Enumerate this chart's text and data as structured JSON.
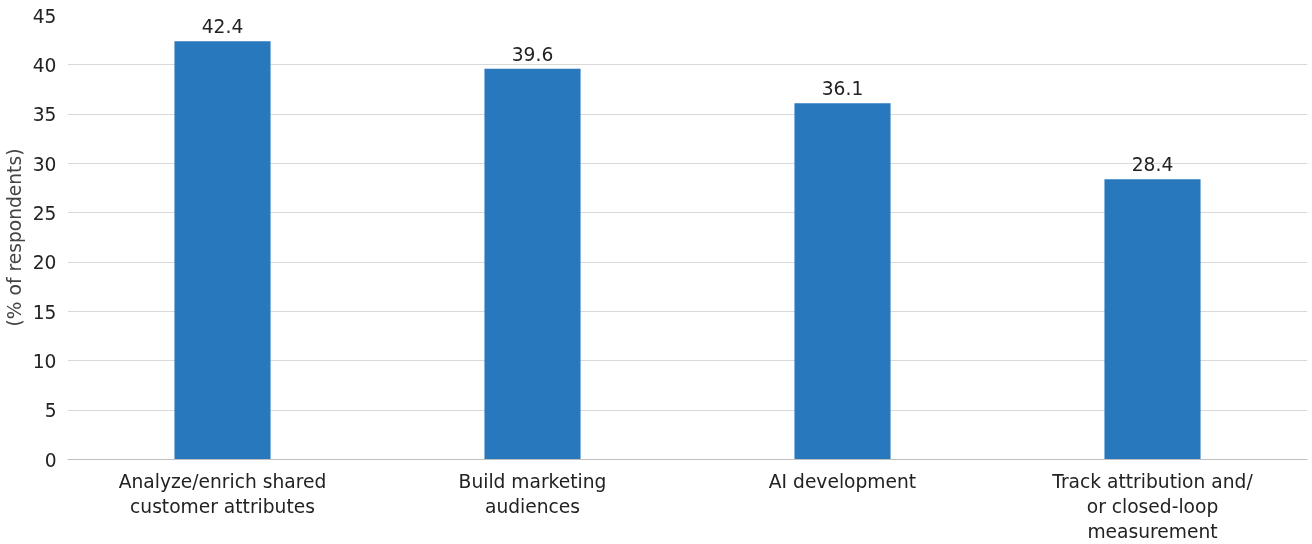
{
  "chart_data": {
    "type": "bar",
    "ylabel": "(% of respondents)",
    "categories": [
      "Analyze/enrich shared customer attributes",
      "Build marketing audiences",
      "AI development",
      "Track attribution and/ or closed-loop measurement"
    ],
    "values": [
      42.4,
      39.6,
      36.1,
      28.4
    ],
    "color": "#2878bd",
    "ylim": [
      0,
      45
    ],
    "yticks": [
      0,
      5,
      10,
      15,
      20,
      25,
      30,
      35,
      40,
      45
    ],
    "grid": "y",
    "data_labels": true
  }
}
